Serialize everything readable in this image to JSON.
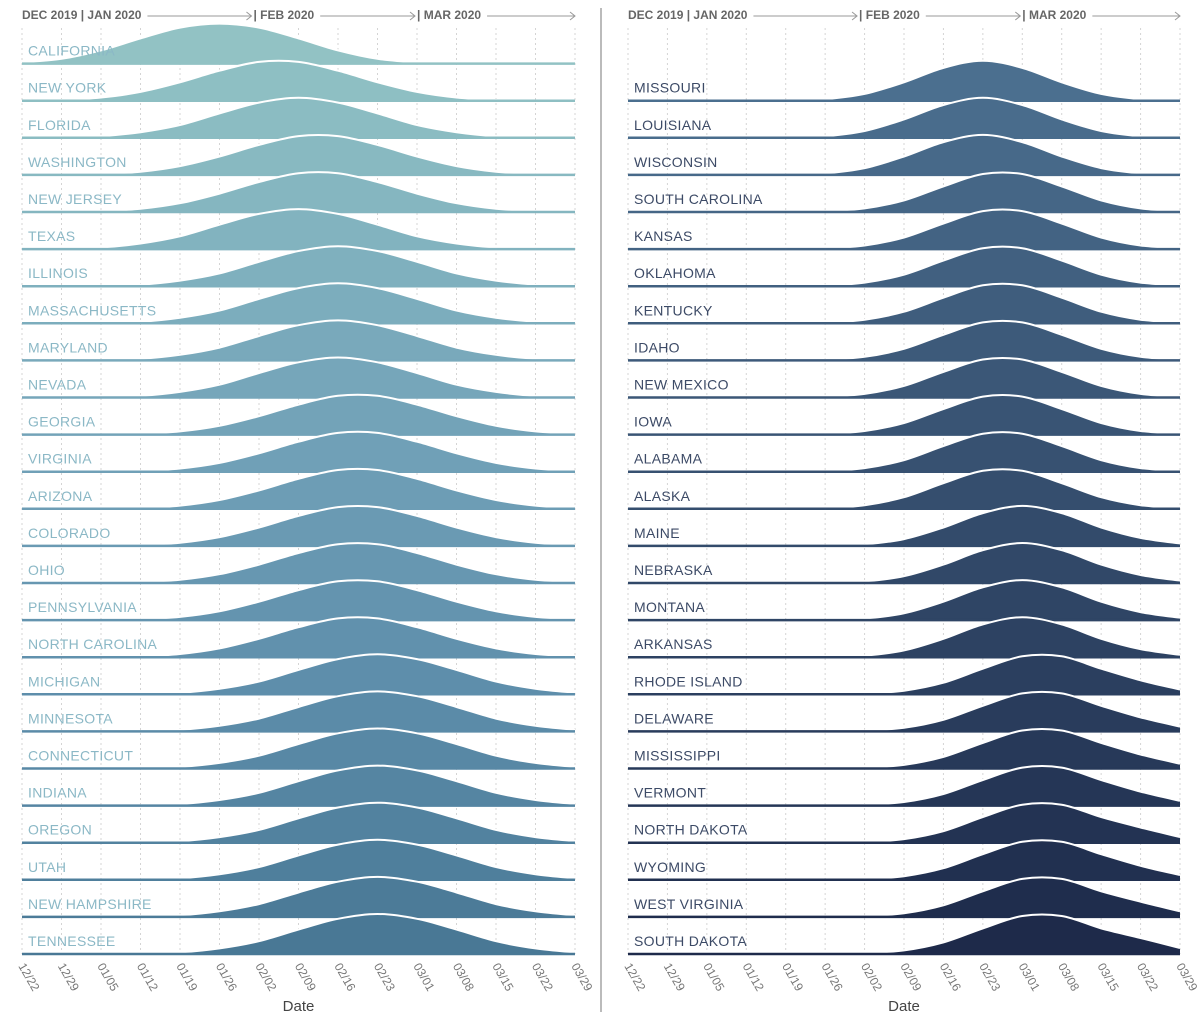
{
  "chart_data": [
    {
      "type": "ridgeline",
      "header_labels": [
        "DEC 2019 | JAN 2020",
        "| FEB 2020",
        "| MAR 2020"
      ],
      "xlabel": "Date",
      "label_color": "#8bb8c6",
      "x": [
        "12/22",
        "12/29",
        "01/05",
        "01/12",
        "01/19",
        "01/26",
        "02/02",
        "02/09",
        "02/16",
        "02/23",
        "03/01",
        "03/08",
        "03/15",
        "03/22",
        "03/29"
      ],
      "series": [
        {
          "name": "CALIFORNIA",
          "color": "#92c2c4",
          "values": [
            0.03,
            0.12,
            0.33,
            0.63,
            0.9,
            1,
            0.9,
            0.63,
            0.33,
            0.12,
            0.03,
            0.01,
            0,
            0,
            0
          ]
        },
        {
          "name": "NEW YORK",
          "color": "#8ebfc3",
          "values": [
            0,
            0.02,
            0.08,
            0.22,
            0.46,
            0.75,
            0.97,
            0.97,
            0.75,
            0.46,
            0.22,
            0.08,
            0.02,
            0,
            0
          ]
        },
        {
          "name": "FLORIDA",
          "color": "#8bbcc2",
          "values": [
            0,
            0.01,
            0.04,
            0.14,
            0.32,
            0.61,
            0.88,
            1,
            0.88,
            0.61,
            0.32,
            0.14,
            0.04,
            0.01,
            0
          ]
        },
        {
          "name": "WASHINGTON",
          "color": "#88b9c1",
          "values": [
            0,
            0,
            0.02,
            0.08,
            0.22,
            0.46,
            0.75,
            0.97,
            0.97,
            0.75,
            0.46,
            0.22,
            0.08,
            0.02,
            0
          ]
        },
        {
          "name": "NEW JERSEY",
          "color": "#85b6c0",
          "values": [
            0,
            0,
            0.02,
            0.08,
            0.22,
            0.46,
            0.75,
            0.97,
            0.97,
            0.75,
            0.46,
            0.22,
            0.08,
            0.02,
            0
          ]
        },
        {
          "name": "TEXAS",
          "color": "#82b3bf",
          "values": [
            0,
            0.01,
            0.04,
            0.14,
            0.32,
            0.61,
            0.88,
            1,
            0.88,
            0.61,
            0.32,
            0.14,
            0.04,
            0.01,
            0
          ]
        },
        {
          "name": "ILLINOIS",
          "color": "#7fb0be",
          "values": [
            0,
            0,
            0.01,
            0.04,
            0.14,
            0.32,
            0.61,
            0.88,
            1,
            0.88,
            0.61,
            0.32,
            0.14,
            0.04,
            0.01
          ]
        },
        {
          "name": "MASSACHUSETTS",
          "color": "#7cadbd",
          "values": [
            0,
            0,
            0.01,
            0.04,
            0.14,
            0.32,
            0.61,
            0.88,
            1,
            0.88,
            0.61,
            0.32,
            0.14,
            0.04,
            0.01
          ]
        },
        {
          "name": "MARYLAND",
          "color": "#79a9bb",
          "values": [
            0,
            0,
            0.01,
            0.04,
            0.14,
            0.32,
            0.61,
            0.88,
            1,
            0.88,
            0.61,
            0.32,
            0.14,
            0.04,
            0.01
          ]
        },
        {
          "name": "NEVADA",
          "color": "#76a6ba",
          "values": [
            0,
            0,
            0.01,
            0.04,
            0.14,
            0.32,
            0.61,
            0.88,
            1,
            0.88,
            0.61,
            0.32,
            0.14,
            0.04,
            0.01
          ]
        },
        {
          "name": "GEORGIA",
          "color": "#73a3b8",
          "values": [
            0,
            0,
            0,
            0.02,
            0.08,
            0.22,
            0.46,
            0.75,
            0.97,
            0.97,
            0.75,
            0.46,
            0.22,
            0.08,
            0.02
          ]
        },
        {
          "name": "VIRGINIA",
          "color": "#70a0b7",
          "values": [
            0,
            0,
            0,
            0.02,
            0.08,
            0.22,
            0.46,
            0.75,
            0.97,
            0.97,
            0.75,
            0.46,
            0.22,
            0.08,
            0.02
          ]
        },
        {
          "name": "ARIZONA",
          "color": "#6d9db5",
          "values": [
            0,
            0,
            0,
            0.02,
            0.08,
            0.22,
            0.46,
            0.75,
            0.97,
            0.97,
            0.75,
            0.46,
            0.22,
            0.08,
            0.02
          ]
        },
        {
          "name": "COLORADO",
          "color": "#6a9ab3",
          "values": [
            0,
            0,
            0,
            0.02,
            0.08,
            0.22,
            0.46,
            0.75,
            0.97,
            0.97,
            0.75,
            0.46,
            0.22,
            0.08,
            0.02
          ]
        },
        {
          "name": "OHIO",
          "color": "#6797b1",
          "values": [
            0,
            0,
            0,
            0.02,
            0.08,
            0.22,
            0.46,
            0.75,
            0.97,
            0.97,
            0.75,
            0.46,
            0.22,
            0.08,
            0.02
          ]
        },
        {
          "name": "PENNSYLVANIA",
          "color": "#6494af",
          "values": [
            0,
            0,
            0,
            0.02,
            0.08,
            0.22,
            0.46,
            0.75,
            0.97,
            0.97,
            0.75,
            0.46,
            0.22,
            0.08,
            0.02
          ]
        },
        {
          "name": "NORTH CAROLINA",
          "color": "#6191ad",
          "values": [
            0,
            0,
            0,
            0.02,
            0.08,
            0.22,
            0.46,
            0.75,
            0.97,
            0.97,
            0.75,
            0.46,
            0.22,
            0.08,
            0.02
          ]
        },
        {
          "name": "MICHIGAN",
          "color": "#5e8eab",
          "values": [
            0,
            0,
            0,
            0.01,
            0.04,
            0.14,
            0.32,
            0.61,
            0.88,
            1,
            0.88,
            0.61,
            0.32,
            0.14,
            0.04
          ]
        },
        {
          "name": "MINNESOTA",
          "color": "#5b8ba8",
          "values": [
            0,
            0,
            0,
            0.01,
            0.04,
            0.14,
            0.32,
            0.61,
            0.88,
            1,
            0.88,
            0.61,
            0.32,
            0.14,
            0.04
          ]
        },
        {
          "name": "CONNECTICUT",
          "color": "#5888a5",
          "values": [
            0,
            0,
            0,
            0.01,
            0.04,
            0.14,
            0.32,
            0.61,
            0.88,
            1,
            0.88,
            0.61,
            0.32,
            0.14,
            0.04
          ]
        },
        {
          "name": "INDIANA",
          "color": "#5585a2",
          "values": [
            0,
            0,
            0,
            0.01,
            0.04,
            0.14,
            0.32,
            0.61,
            0.88,
            1,
            0.88,
            0.61,
            0.32,
            0.14,
            0.04
          ]
        },
        {
          "name": "OREGON",
          "color": "#52829f",
          "values": [
            0,
            0,
            0,
            0.01,
            0.04,
            0.14,
            0.32,
            0.61,
            0.88,
            1,
            0.88,
            0.61,
            0.32,
            0.14,
            0.04
          ]
        },
        {
          "name": "UTAH",
          "color": "#4f7f9c",
          "values": [
            0,
            0,
            0,
            0.01,
            0.04,
            0.14,
            0.32,
            0.61,
            0.88,
            1,
            0.88,
            0.61,
            0.32,
            0.14,
            0.04
          ]
        },
        {
          "name": "NEW HAMPSHIRE",
          "color": "#4c7b98",
          "values": [
            0,
            0,
            0,
            0.01,
            0.04,
            0.14,
            0.32,
            0.61,
            0.88,
            1,
            0.88,
            0.61,
            0.32,
            0.14,
            0.04
          ]
        },
        {
          "name": "TENNESSEE",
          "color": "#497895",
          "values": [
            0,
            0,
            0,
            0.01,
            0.04,
            0.14,
            0.32,
            0.61,
            0.88,
            1,
            0.88,
            0.61,
            0.32,
            0.14,
            0.04
          ]
        }
      ]
    },
    {
      "type": "ridgeline",
      "header_labels": [
        "DEC 2019 | JAN 2020",
        "| FEB 2020",
        "| MAR 2020"
      ],
      "xlabel": "Date",
      "label_color": "#3c4a66",
      "x": [
        "12/22",
        "12/29",
        "01/05",
        "01/12",
        "01/19",
        "01/26",
        "02/02",
        "02/09",
        "02/16",
        "02/23",
        "03/01",
        "03/08",
        "03/15",
        "03/22",
        "03/29"
      ],
      "series": [
        {
          "name": "MISSOURI",
          "color": "#4b6f8f",
          "values": [
            0,
            0,
            0,
            0,
            0.01,
            0.04,
            0.17,
            0.46,
            0.82,
            1,
            0.82,
            0.46,
            0.17,
            0.04,
            0.01
          ]
        },
        {
          "name": "LOUISIANA",
          "color": "#496c8c",
          "values": [
            0,
            0,
            0,
            0,
            0.01,
            0.04,
            0.17,
            0.46,
            0.82,
            1,
            0.82,
            0.46,
            0.17,
            0.04,
            0.01
          ]
        },
        {
          "name": "WISCONSIN",
          "color": "#476989",
          "values": [
            0,
            0,
            0,
            0,
            0.01,
            0.04,
            0.17,
            0.46,
            0.82,
            1,
            0.82,
            0.46,
            0.17,
            0.04,
            0.01
          ]
        },
        {
          "name": "SOUTH CAROLINA",
          "color": "#456686",
          "values": [
            0,
            0,
            0,
            0,
            0,
            0.02,
            0.09,
            0.29,
            0.64,
            0.95,
            0.95,
            0.64,
            0.29,
            0.09,
            0.02
          ]
        },
        {
          "name": "KANSAS",
          "color": "#436383",
          "values": [
            0,
            0,
            0,
            0,
            0,
            0.02,
            0.09,
            0.29,
            0.64,
            0.95,
            0.95,
            0.64,
            0.29,
            0.09,
            0.02
          ]
        },
        {
          "name": "OKLAHOMA",
          "color": "#416080",
          "values": [
            0,
            0,
            0,
            0,
            0,
            0.02,
            0.09,
            0.29,
            0.64,
            0.95,
            0.95,
            0.64,
            0.29,
            0.09,
            0.02
          ]
        },
        {
          "name": "KENTUCKY",
          "color": "#3f5d7d",
          "values": [
            0,
            0,
            0,
            0,
            0,
            0.02,
            0.09,
            0.29,
            0.64,
            0.95,
            0.95,
            0.64,
            0.29,
            0.09,
            0.02
          ]
        },
        {
          "name": "IDAHO",
          "color": "#3d5a7a",
          "values": [
            0,
            0,
            0,
            0,
            0,
            0.02,
            0.09,
            0.29,
            0.64,
            0.95,
            0.95,
            0.64,
            0.29,
            0.09,
            0.02
          ]
        },
        {
          "name": "NEW MEXICO",
          "color": "#3b5777",
          "values": [
            0,
            0,
            0,
            0,
            0,
            0.02,
            0.09,
            0.29,
            0.64,
            0.95,
            0.95,
            0.64,
            0.29,
            0.09,
            0.02
          ]
        },
        {
          "name": "IOWA",
          "color": "#395474",
          "values": [
            0,
            0,
            0,
            0,
            0,
            0.02,
            0.09,
            0.29,
            0.64,
            0.95,
            0.95,
            0.64,
            0.29,
            0.09,
            0.02
          ]
        },
        {
          "name": "ALABAMA",
          "color": "#375171",
          "values": [
            0,
            0,
            0,
            0,
            0,
            0.02,
            0.09,
            0.29,
            0.64,
            0.95,
            0.95,
            0.64,
            0.29,
            0.09,
            0.02
          ]
        },
        {
          "name": "ALASKA",
          "color": "#354e6e",
          "values": [
            0,
            0,
            0,
            0,
            0,
            0.02,
            0.09,
            0.29,
            0.64,
            0.95,
            0.95,
            0.64,
            0.29,
            0.09,
            0.02
          ]
        },
        {
          "name": "MAINE",
          "color": "#334b6b",
          "values": [
            0,
            0,
            0,
            0,
            0,
            0.01,
            0.04,
            0.17,
            0.46,
            0.82,
            1,
            0.82,
            0.46,
            0.2,
            0.06
          ]
        },
        {
          "name": "NEBRASKA",
          "color": "#314868",
          "values": [
            0,
            0,
            0,
            0,
            0,
            0.01,
            0.04,
            0.17,
            0.46,
            0.82,
            1,
            0.82,
            0.46,
            0.2,
            0.06
          ]
        },
        {
          "name": "MONTANA",
          "color": "#2f4565",
          "values": [
            0,
            0,
            0,
            0,
            0,
            0.01,
            0.04,
            0.17,
            0.46,
            0.82,
            1,
            0.82,
            0.46,
            0.2,
            0.06
          ]
        },
        {
          "name": "ARKANSAS",
          "color": "#2d4262",
          "values": [
            0,
            0,
            0,
            0,
            0,
            0.01,
            0.04,
            0.17,
            0.46,
            0.82,
            1,
            0.82,
            0.46,
            0.2,
            0.06
          ]
        },
        {
          "name": "RHODE ISLAND",
          "color": "#2b3f5f",
          "values": [
            0,
            0,
            0,
            0,
            0,
            0,
            0.02,
            0.09,
            0.29,
            0.64,
            0.95,
            0.95,
            0.64,
            0.35,
            0.12
          ]
        },
        {
          "name": "DELAWARE",
          "color": "#293c5c",
          "values": [
            0,
            0,
            0,
            0,
            0,
            0,
            0.02,
            0.09,
            0.29,
            0.64,
            0.95,
            0.95,
            0.64,
            0.35,
            0.12
          ]
        },
        {
          "name": "MISSISSIPPI",
          "color": "#273959",
          "values": [
            0,
            0,
            0,
            0,
            0,
            0,
            0.02,
            0.09,
            0.29,
            0.64,
            0.95,
            0.95,
            0.64,
            0.35,
            0.12
          ]
        },
        {
          "name": "VERMONT",
          "color": "#253656",
          "values": [
            0,
            0,
            0,
            0,
            0,
            0,
            0.02,
            0.09,
            0.29,
            0.64,
            0.95,
            0.95,
            0.64,
            0.35,
            0.12
          ]
        },
        {
          "name": "NORTH DAKOTA",
          "color": "#233353",
          "values": [
            0,
            0,
            0,
            0,
            0,
            0,
            0.02,
            0.09,
            0.29,
            0.64,
            0.95,
            0.95,
            0.64,
            0.38,
            0.14
          ]
        },
        {
          "name": "WYOMING",
          "color": "#213050",
          "values": [
            0,
            0,
            0,
            0,
            0,
            0,
            0.02,
            0.09,
            0.29,
            0.64,
            0.95,
            0.95,
            0.64,
            0.35,
            0.12
          ]
        },
        {
          "name": "WEST VIRGINIA",
          "color": "#1f2d4d",
          "values": [
            0,
            0,
            0,
            0,
            0,
            0,
            0.02,
            0.09,
            0.29,
            0.64,
            0.95,
            0.95,
            0.64,
            0.38,
            0.14
          ]
        },
        {
          "name": "SOUTH DAKOTA",
          "color": "#1e2a4a",
          "values": [
            0,
            0,
            0,
            0,
            0,
            0,
            0.02,
            0.09,
            0.29,
            0.64,
            0.95,
            0.95,
            0.64,
            0.4,
            0.15
          ]
        }
      ]
    }
  ]
}
